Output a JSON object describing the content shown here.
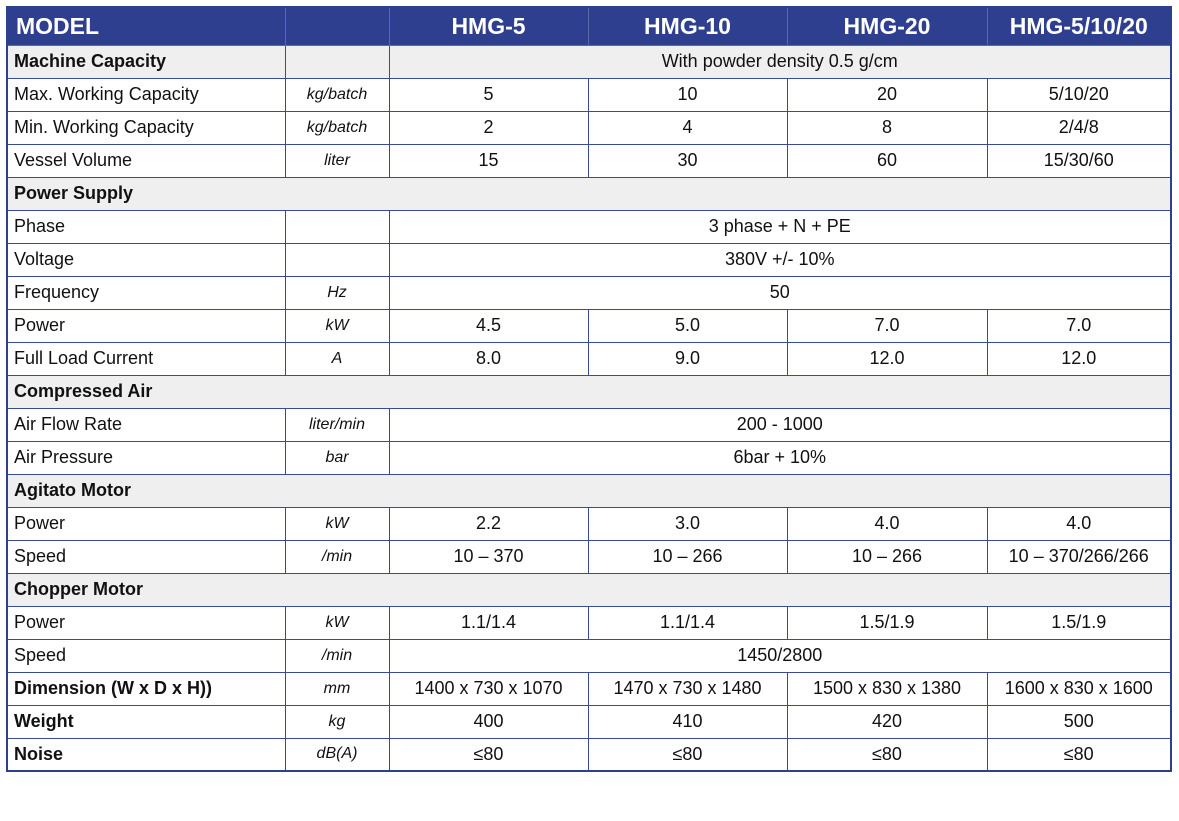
{
  "header": {
    "model": "MODEL",
    "models": [
      "HMG-5",
      "HMG-10",
      "HMG-20",
      "HMG-5/10/20"
    ]
  },
  "rows": [
    {
      "type": "section",
      "label": "Machine Capacity",
      "span_value": "With powder density 0.5 g/cm"
    },
    {
      "type": "data",
      "label": "Max. Working Capacity",
      "unit": "kg/batch",
      "values": [
        "5",
        "10",
        "20",
        "5/10/20"
      ]
    },
    {
      "type": "data",
      "label": "Min. Working Capacity",
      "unit": "kg/batch",
      "values": [
        "2",
        "4",
        "8",
        "2/4/8"
      ]
    },
    {
      "type": "data",
      "label": "Vessel Volume",
      "unit": "liter",
      "values": [
        "15",
        "30",
        "60",
        "15/30/60"
      ]
    },
    {
      "type": "section",
      "label": "Power Supply"
    },
    {
      "type": "span",
      "label": "Phase",
      "unit": "",
      "value": "3 phase + N + PE"
    },
    {
      "type": "span",
      "label": "Voltage",
      "unit": "",
      "value": "380V +/- 10%"
    },
    {
      "type": "span",
      "label": "Frequency",
      "unit": "Hz",
      "value": "50"
    },
    {
      "type": "data",
      "label": "Power",
      "unit": "kW",
      "values": [
        "4.5",
        "5.0",
        "7.0",
        "7.0"
      ]
    },
    {
      "type": "data",
      "label": "Full Load Current",
      "unit": "A",
      "values": [
        "8.0",
        "9.0",
        "12.0",
        "12.0"
      ]
    },
    {
      "type": "section",
      "label": "Compressed Air"
    },
    {
      "type": "span",
      "label": "Air Flow Rate",
      "unit": "liter/min",
      "value": "200 - 1000"
    },
    {
      "type": "span",
      "label": "Air Pressure",
      "unit": "bar",
      "value": "6bar + 10%"
    },
    {
      "type": "section",
      "label": "Agitato Motor"
    },
    {
      "type": "data",
      "label": "Power",
      "unit": "kW",
      "values": [
        "2.2",
        "3.0",
        "4.0",
        "4.0"
      ]
    },
    {
      "type": "data",
      "label": "Speed",
      "unit": "/min",
      "values": [
        "10 – 370",
        "10 – 266",
        "10 – 266",
        "10 – 370/266/266"
      ]
    },
    {
      "type": "section",
      "label": "Chopper Motor"
    },
    {
      "type": "data",
      "label": "Power",
      "unit": "kW",
      "values": [
        "1.1/1.4",
        "1.1/1.4",
        "1.5/1.9",
        "1.5/1.9"
      ]
    },
    {
      "type": "span",
      "label": "Speed",
      "unit": "/min",
      "value": "1450/2800"
    },
    {
      "type": "data",
      "bold": true,
      "label": "Dimension (W x D x H))",
      "unit": "mm",
      "values": [
        "1400 x 730 x 1070",
        "1470 x 730 x 1480",
        "1500 x 830 x 1380",
        "1600 x 830 x 1600"
      ]
    },
    {
      "type": "data",
      "bold": true,
      "label": "Weight",
      "unit": "kg",
      "values": [
        "400",
        "410",
        "420",
        "500"
      ]
    },
    {
      "type": "data",
      "bold": true,
      "label": "Noise",
      "unit": "dB(A)",
      "values": [
        "≤80",
        "≤80",
        "≤80",
        "≤80"
      ]
    }
  ]
}
